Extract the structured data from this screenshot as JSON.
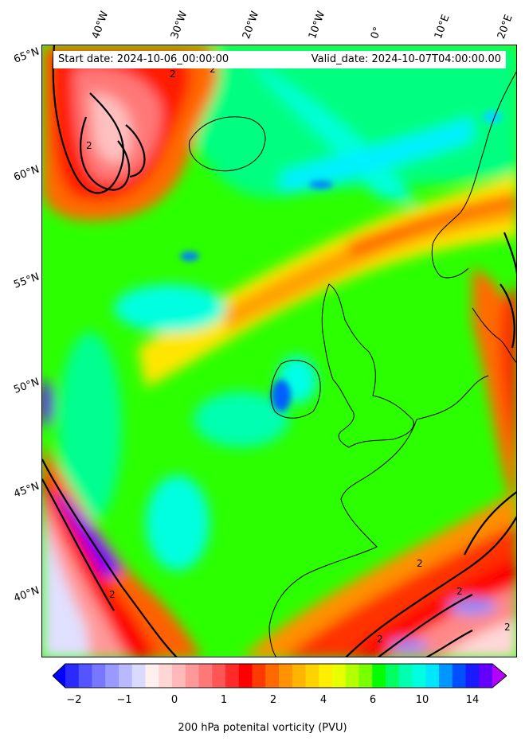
{
  "header": {
    "start_date": "Start date: 2024-10-06_00:00:00",
    "valid_date": "Valid_date: 2024-10-07T04:00:00.00"
  },
  "longitude_labels": [
    "40°W",
    "30°W",
    "20°W",
    "10°W",
    "0°",
    "10°E",
    "20°E"
  ],
  "latitude_labels": [
    "65°N",
    "60°N",
    "55°N",
    "50°N",
    "45°N",
    "40°N"
  ],
  "colorbar": {
    "label": "200 hPa potenital vorticity (PVU)",
    "ticks": [
      "−2",
      "−1",
      "0",
      "1",
      "2",
      "4",
      "6",
      "10",
      "14"
    ],
    "colors": [
      "#0000ff",
      "#2a2aff",
      "#5555ff",
      "#7878ff",
      "#9999ff",
      "#b9b9ff",
      "#dadaff",
      "#fff0f0",
      "#ffd6d6",
      "#ffb9b9",
      "#ff9999",
      "#ff7878",
      "#ff5555",
      "#ff2a2a",
      "#ff0000",
      "#ff3a00",
      "#ff6a00",
      "#ff9200",
      "#ffb400",
      "#ffd200",
      "#ffee00",
      "#e8ff00",
      "#b4ff00",
      "#78ff00",
      "#00ff00",
      "#00ff60",
      "#00ffb0",
      "#00ffe0",
      "#00e6ff",
      "#0096ff",
      "#0050ff",
      "#1a1aff",
      "#6400ff",
      "#b400ff"
    ]
  }
}
